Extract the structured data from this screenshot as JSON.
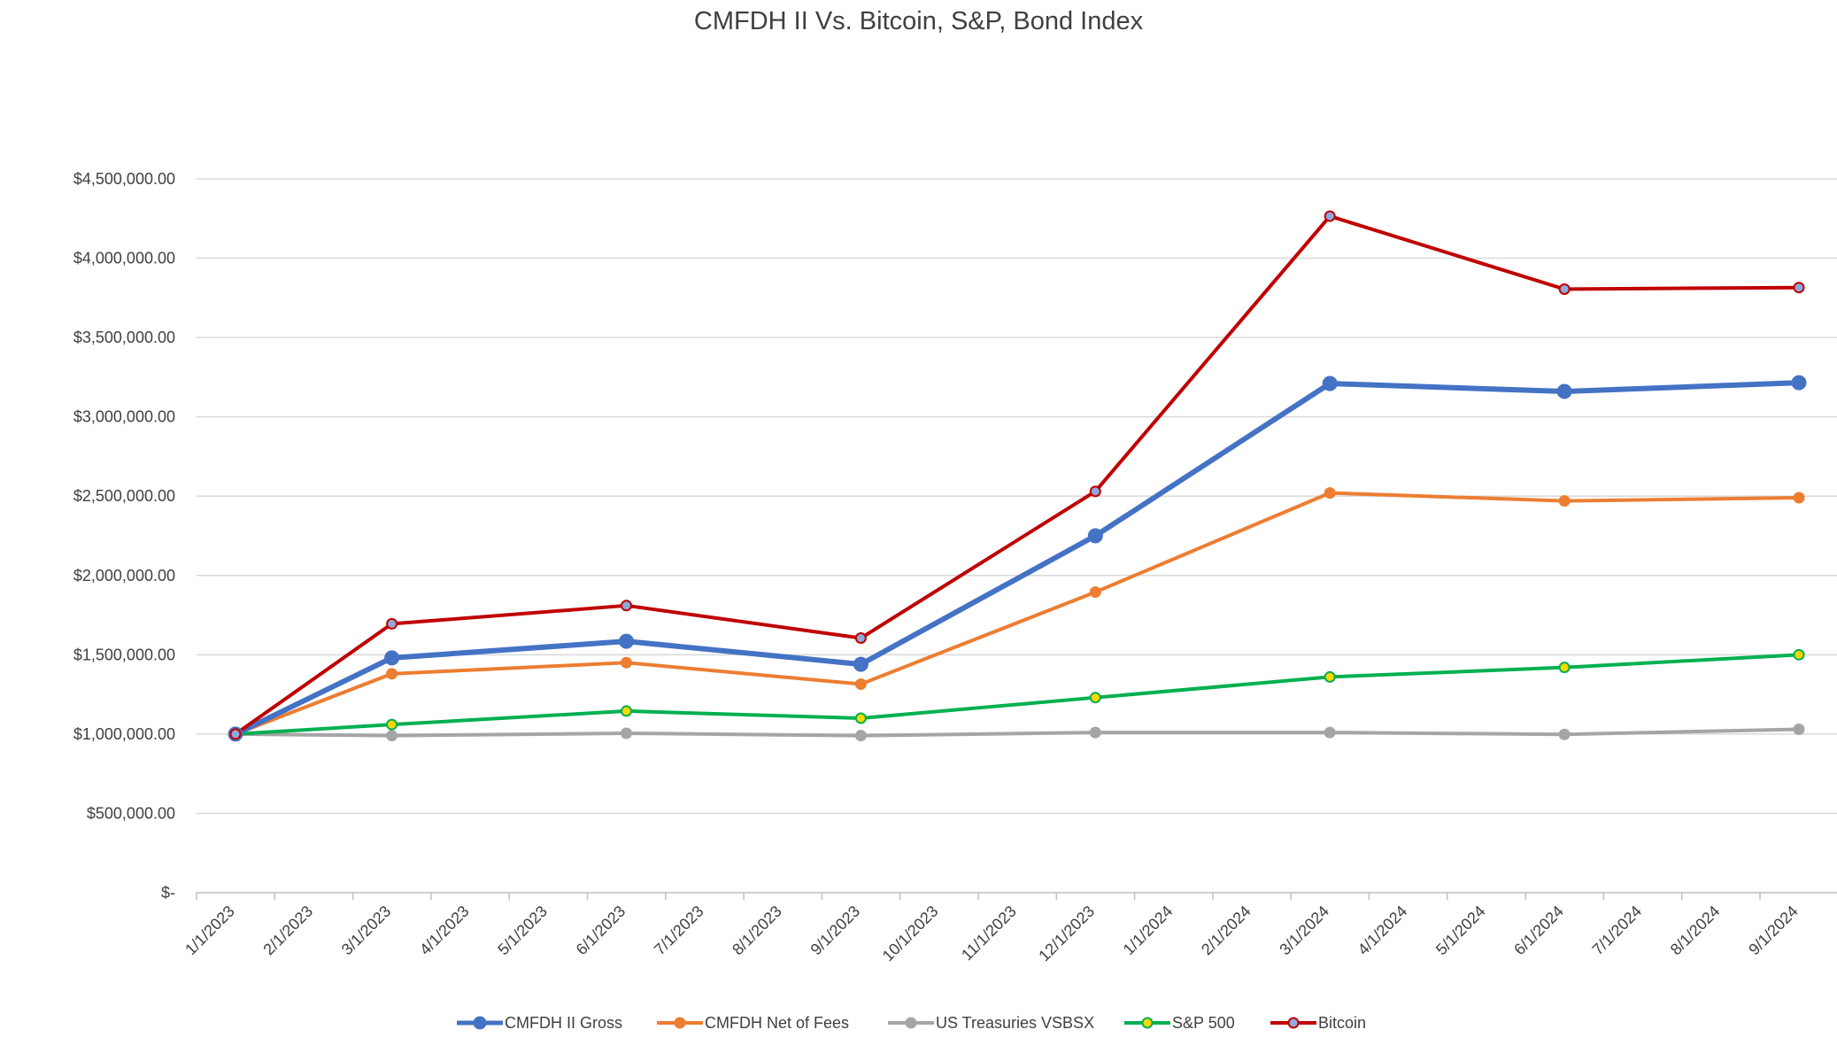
{
  "chart_data": {
    "type": "line",
    "title": "CMFDH II Vs. Bitcoin, S&P, Bond Index",
    "xlabel": "",
    "ylabel": "",
    "ylim": [
      0,
      4500000
    ],
    "y_ticks": [
      {
        "value": 0,
        "label": "$-"
      },
      {
        "value": 500000,
        "label": "$500,000.00"
      },
      {
        "value": 1000000,
        "label": "$1,000,000.00"
      },
      {
        "value": 1500000,
        "label": "$1,500,000.00"
      },
      {
        "value": 2000000,
        "label": "$2,000,000.00"
      },
      {
        "value": 2500000,
        "label": "$2,500,000.00"
      },
      {
        "value": 3000000,
        "label": "$3,000,000.00"
      },
      {
        "value": 3500000,
        "label": "$3,500,000.00"
      },
      {
        "value": 4000000,
        "label": "$4,000,000.00"
      },
      {
        "value": 4500000,
        "label": "$4,500,000.00"
      }
    ],
    "x_ticks": [
      "1/1/2023",
      "2/1/2023",
      "3/1/2023",
      "4/1/2023",
      "5/1/2023",
      "6/1/2023",
      "7/1/2023",
      "8/1/2023",
      "9/1/2023",
      "10/1/2023",
      "11/1/2023",
      "12/1/2023",
      "1/1/2024",
      "2/1/2024",
      "3/1/2024",
      "4/1/2024",
      "5/1/2024",
      "6/1/2024",
      "7/1/2024",
      "8/1/2024",
      "9/1/2024"
    ],
    "x": [
      "1/1/2023",
      "3/1/2023",
      "6/1/2023",
      "9/1/2023",
      "12/1/2023",
      "3/1/2024",
      "6/1/2024",
      "9/1/2024"
    ],
    "series": [
      {
        "name": "US Treasuries VSBSX",
        "color": "#A5A5A5",
        "marker_fill": "#A5A5A5",
        "values": [
          1000000,
          990000,
          1005000,
          990000,
          1010000,
          1010000,
          998000,
          1030000
        ]
      },
      {
        "name": "S&P 500",
        "color": "#00B050",
        "marker_fill": "#FFD700",
        "values": [
          1000000,
          1060000,
          1145000,
          1100000,
          1230000,
          1360000,
          1420000,
          1500000
        ]
      },
      {
        "name": "CMFDH Net of Fees",
        "color": "#ED7D31",
        "marker_fill": "#ED7D31",
        "values": [
          1000000,
          1380000,
          1450000,
          1315000,
          1895000,
          2520000,
          2470000,
          2490000
        ]
      },
      {
        "name": "CMFDH II Gross",
        "color": "#4472C4",
        "marker_fill": "#4472C4",
        "values": [
          1000000,
          1480000,
          1585000,
          1440000,
          2250000,
          3210000,
          3160000,
          3215000
        ]
      },
      {
        "name": "Bitcoin",
        "color": "#C00000",
        "marker_fill": "#8EA9DB",
        "values": [
          1000000,
          1695000,
          1810000,
          1605000,
          2530000,
          4265000,
          3805000,
          3815000
        ]
      }
    ],
    "legend": {
      "position": "bottom",
      "order": [
        "CMFDH II Gross",
        "CMFDH Net of Fees",
        "US Treasuries VSBSX",
        "S&P 500",
        "Bitcoin"
      ]
    }
  }
}
